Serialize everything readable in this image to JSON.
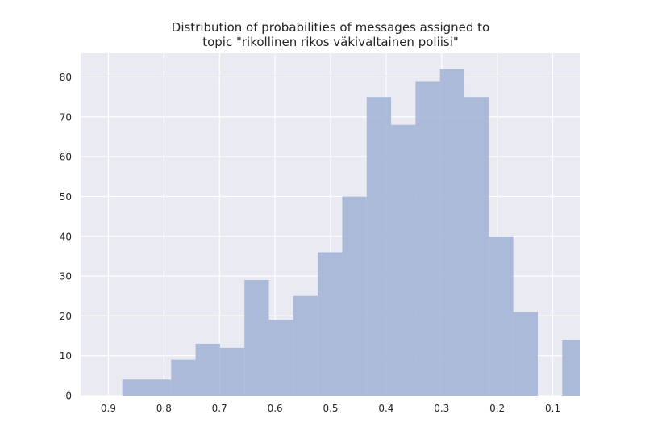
{
  "chart_data": {
    "type": "bar",
    "title": [
      "Distribution of probabilities of messages assigned to",
      "topic \"rikollinen rikos väkivaltainen poliisi\""
    ],
    "xlabel": "",
    "ylabel": "",
    "x_reversed": true,
    "xlim": [
      0.95,
      0.05
    ],
    "ylim": [
      0,
      86
    ],
    "xticks": [
      0.9,
      0.8,
      0.7,
      0.6,
      0.5,
      0.4,
      0.3,
      0.2,
      0.1
    ],
    "xtick_labels": [
      "0.9",
      "0.8",
      "0.7",
      "0.6",
      "0.5",
      "0.4",
      "0.3",
      "0.2",
      "0.1"
    ],
    "yticks": [
      0,
      10,
      20,
      30,
      40,
      50,
      60,
      70,
      80
    ],
    "ytick_labels": [
      "0",
      "10",
      "20",
      "30",
      "40",
      "50",
      "60",
      "70",
      "80"
    ],
    "bin_edges": [
      0.875,
      0.831,
      0.787,
      0.743,
      0.699,
      0.655,
      0.611,
      0.567,
      0.523,
      0.479,
      0.435,
      0.391,
      0.347,
      0.303,
      0.259,
      0.215,
      0.171,
      0.127,
      0.083,
      0.05
    ],
    "values": [
      4,
      4,
      9,
      13,
      12,
      29,
      19,
      25,
      36,
      50,
      75,
      68,
      79,
      82,
      75,
      40,
      21,
      0,
      14
    ],
    "grid": true,
    "bar_color": "#a2b3d5",
    "background_color": "#eaeaf2",
    "grid_color": "#ffffff"
  }
}
